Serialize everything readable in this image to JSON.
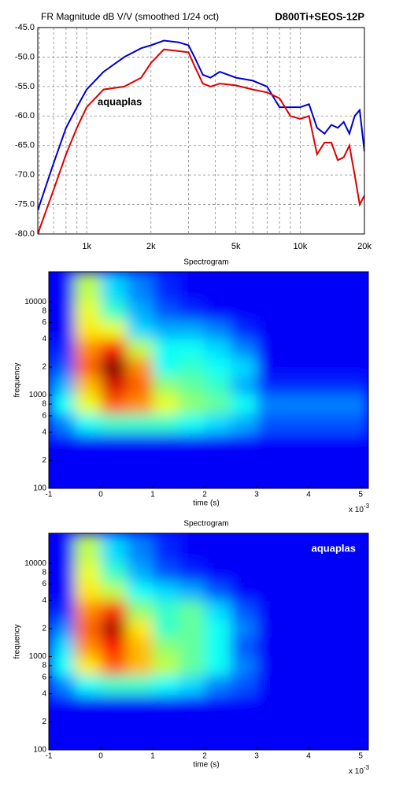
{
  "chart_data": [
    {
      "type": "line",
      "title": "FR Magnitude dB V/V (smoothed 1/24 oct)",
      "subtitle": "D800Ti+SEOS-12P",
      "annotation": {
        "text": "aquaplas",
        "color": "#dd0000"
      },
      "x_log": true,
      "grid": true,
      "xlim": [
        590,
        20000
      ],
      "xticks": [
        {
          "value": 1000,
          "label": "1k"
        },
        {
          "value": 2000,
          "label": "2k"
        },
        {
          "value": 5000,
          "label": "5k"
        },
        {
          "value": 10000,
          "label": "10k"
        },
        {
          "value": 20000,
          "label": "20k"
        }
      ],
      "xminorticks": [
        600,
        700,
        800,
        900,
        3000,
        4000,
        6000,
        7000,
        8000,
        9000
      ],
      "ylim": [
        -80,
        -45
      ],
      "yticks": [
        {
          "value": -45,
          "label": "-45.0"
        },
        {
          "value": -50,
          "label": "-50.0"
        },
        {
          "value": -55,
          "label": "-55.0"
        },
        {
          "value": -60,
          "label": "-60.0"
        },
        {
          "value": -65,
          "label": "-65.0"
        },
        {
          "value": -70,
          "label": "-70.0"
        },
        {
          "value": -75,
          "label": "-75.0"
        },
        {
          "value": -80,
          "label": "-80.0"
        }
      ],
      "x": [
        590,
        700,
        800,
        900,
        1000,
        1200,
        1500,
        1800,
        2000,
        2300,
        2700,
        3000,
        3200,
        3500,
        3800,
        4200,
        5000,
        6000,
        7000,
        8000,
        9000,
        10000,
        11000,
        12000,
        13000,
        14000,
        15000,
        16000,
        17000,
        18000,
        19000,
        20000
      ],
      "series": [
        {
          "color": "#0000cc",
          "values": [
            -76,
            -68,
            -62,
            -58.5,
            -55.5,
            -52.5,
            -50,
            -48.5,
            -48,
            -47.2,
            -47.5,
            -48,
            -50,
            -53,
            -53.5,
            -52.5,
            -53.5,
            -54,
            -55,
            -58.5,
            -58.5,
            -58.5,
            -58,
            -62,
            -63,
            -61.5,
            -62,
            -61,
            -63,
            -60,
            -59,
            -66
          ]
        },
        {
          "color": "#dd0000",
          "values": [
            -80,
            -72.5,
            -66.5,
            -62,
            -58.5,
            -55.5,
            -55,
            -53.5,
            -51,
            -48.7,
            -49,
            -49.2,
            -51.5,
            -54.5,
            -55,
            -54.5,
            -54.8,
            -55.5,
            -56,
            -57,
            -60,
            -60.5,
            -60,
            -66.5,
            -64.5,
            -64.5,
            -67.5,
            -67,
            -65,
            -70,
            -75,
            -73.5
          ]
        }
      ]
    },
    {
      "type": "heatmap",
      "title": "Spectrogram",
      "x_label": "time (s)",
      "y_label": "frequency",
      "x_scale_label": {
        "text": "x 10",
        "exponent": "-3"
      },
      "y_log": true,
      "xlim": [
        -1,
        5.15
      ],
      "ylim": [
        100,
        21000
      ],
      "xticks": [
        -1,
        0,
        1,
        2,
        3,
        4,
        5
      ],
      "yticks": [
        100,
        {
          "value": 200,
          "label": "2"
        },
        {
          "value": 400,
          "label": "4"
        },
        {
          "value": 600,
          "label": "6"
        },
        {
          "value": 800,
          "label": "8"
        },
        1000,
        {
          "value": 2000,
          "label": "2"
        },
        {
          "value": 4000,
          "label": "4"
        },
        {
          "value": 6000,
          "label": "6"
        },
        {
          "value": 8000,
          "label": "8"
        },
        10000
      ],
      "x": [
        -0.75,
        -0.25,
        0.25,
        0.75,
        1.25,
        1.75,
        2.25,
        2.75,
        3.25
      ],
      "y": [
        300,
        500,
        800,
        1300,
        2000,
        3200,
        5000,
        8000,
        13000
      ],
      "z": [
        [
          0,
          0,
          0,
          0,
          0,
          0,
          0,
          0,
          0
        ],
        [
          0.15,
          0.3,
          0.35,
          0.35,
          0.35,
          0.3,
          0.25,
          0.2,
          0.1
        ],
        [
          0.3,
          0.55,
          0.75,
          0.7,
          0.55,
          0.45,
          0.4,
          0.3,
          0.15
        ],
        [
          0.2,
          0.65,
          0.9,
          0.75,
          0.45,
          0.4,
          0.35,
          0.2,
          0.05
        ],
        [
          0.1,
          0.75,
          1,
          0.7,
          0.3,
          0.35,
          0.3,
          0.25,
          0
        ],
        [
          0.05,
          0.7,
          0.85,
          0.5,
          0.3,
          0.3,
          0.25,
          0.15,
          0
        ],
        [
          0,
          0.6,
          0.55,
          0.25,
          0.2,
          0.2,
          0.15,
          0.05,
          0
        ],
        [
          0,
          0.55,
          0.35,
          0.2,
          0.1,
          0.05,
          0,
          0,
          0
        ],
        [
          0,
          0.5,
          0.25,
          0.15,
          0.05,
          0,
          0,
          0,
          0
        ]
      ]
    },
    {
      "type": "heatmap",
      "title": "Spectrogram",
      "x_label": "time (s)",
      "y_label": "frequency",
      "x_scale_label": {
        "text": "x 10",
        "exponent": "-3"
      },
      "annotation": {
        "text": "aquaplas",
        "color": "#ffffff"
      },
      "y_log": true,
      "xlim": [
        -1,
        5.15
      ],
      "ylim": [
        100,
        21000
      ],
      "xticks": [
        -1,
        0,
        1,
        2,
        3,
        4,
        5
      ],
      "yticks": [
        100,
        {
          "value": 200,
          "label": "2"
        },
        {
          "value": 400,
          "label": "4"
        },
        {
          "value": 600,
          "label": "6"
        },
        {
          "value": 800,
          "label": "8"
        },
        1000,
        {
          "value": 2000,
          "label": "2"
        },
        {
          "value": 4000,
          "label": "4"
        },
        {
          "value": 6000,
          "label": "6"
        },
        {
          "value": 8000,
          "label": "8"
        },
        10000
      ],
      "x": [
        -0.75,
        -0.25,
        0.25,
        0.75,
        1.25,
        1.75,
        2.25,
        2.75,
        3.25
      ],
      "y": [
        300,
        500,
        800,
        1300,
        2000,
        3200,
        5000,
        8000,
        13000
      ],
      "z": [
        [
          0,
          0,
          0,
          0,
          0,
          0,
          0,
          0,
          0
        ],
        [
          0.15,
          0.3,
          0.35,
          0.35,
          0.3,
          0.25,
          0.15,
          0.1,
          0
        ],
        [
          0.3,
          0.6,
          0.75,
          0.65,
          0.5,
          0.4,
          0.3,
          0.15,
          0
        ],
        [
          0.25,
          0.7,
          0.85,
          0.65,
          0.45,
          0.4,
          0.3,
          0.1,
          0
        ],
        [
          0.15,
          0.75,
          0.95,
          0.6,
          0.35,
          0.4,
          0.3,
          0.15,
          0
        ],
        [
          0.05,
          0.7,
          0.8,
          0.45,
          0.35,
          0.4,
          0.25,
          0.1,
          0
        ],
        [
          0,
          0.6,
          0.5,
          0.3,
          0.25,
          0.2,
          0.1,
          0,
          0
        ],
        [
          0,
          0.55,
          0.35,
          0.2,
          0.1,
          0.05,
          0,
          0,
          0
        ],
        [
          0,
          0.5,
          0.25,
          0.15,
          0.05,
          0,
          0,
          0,
          0
        ]
      ]
    }
  ]
}
